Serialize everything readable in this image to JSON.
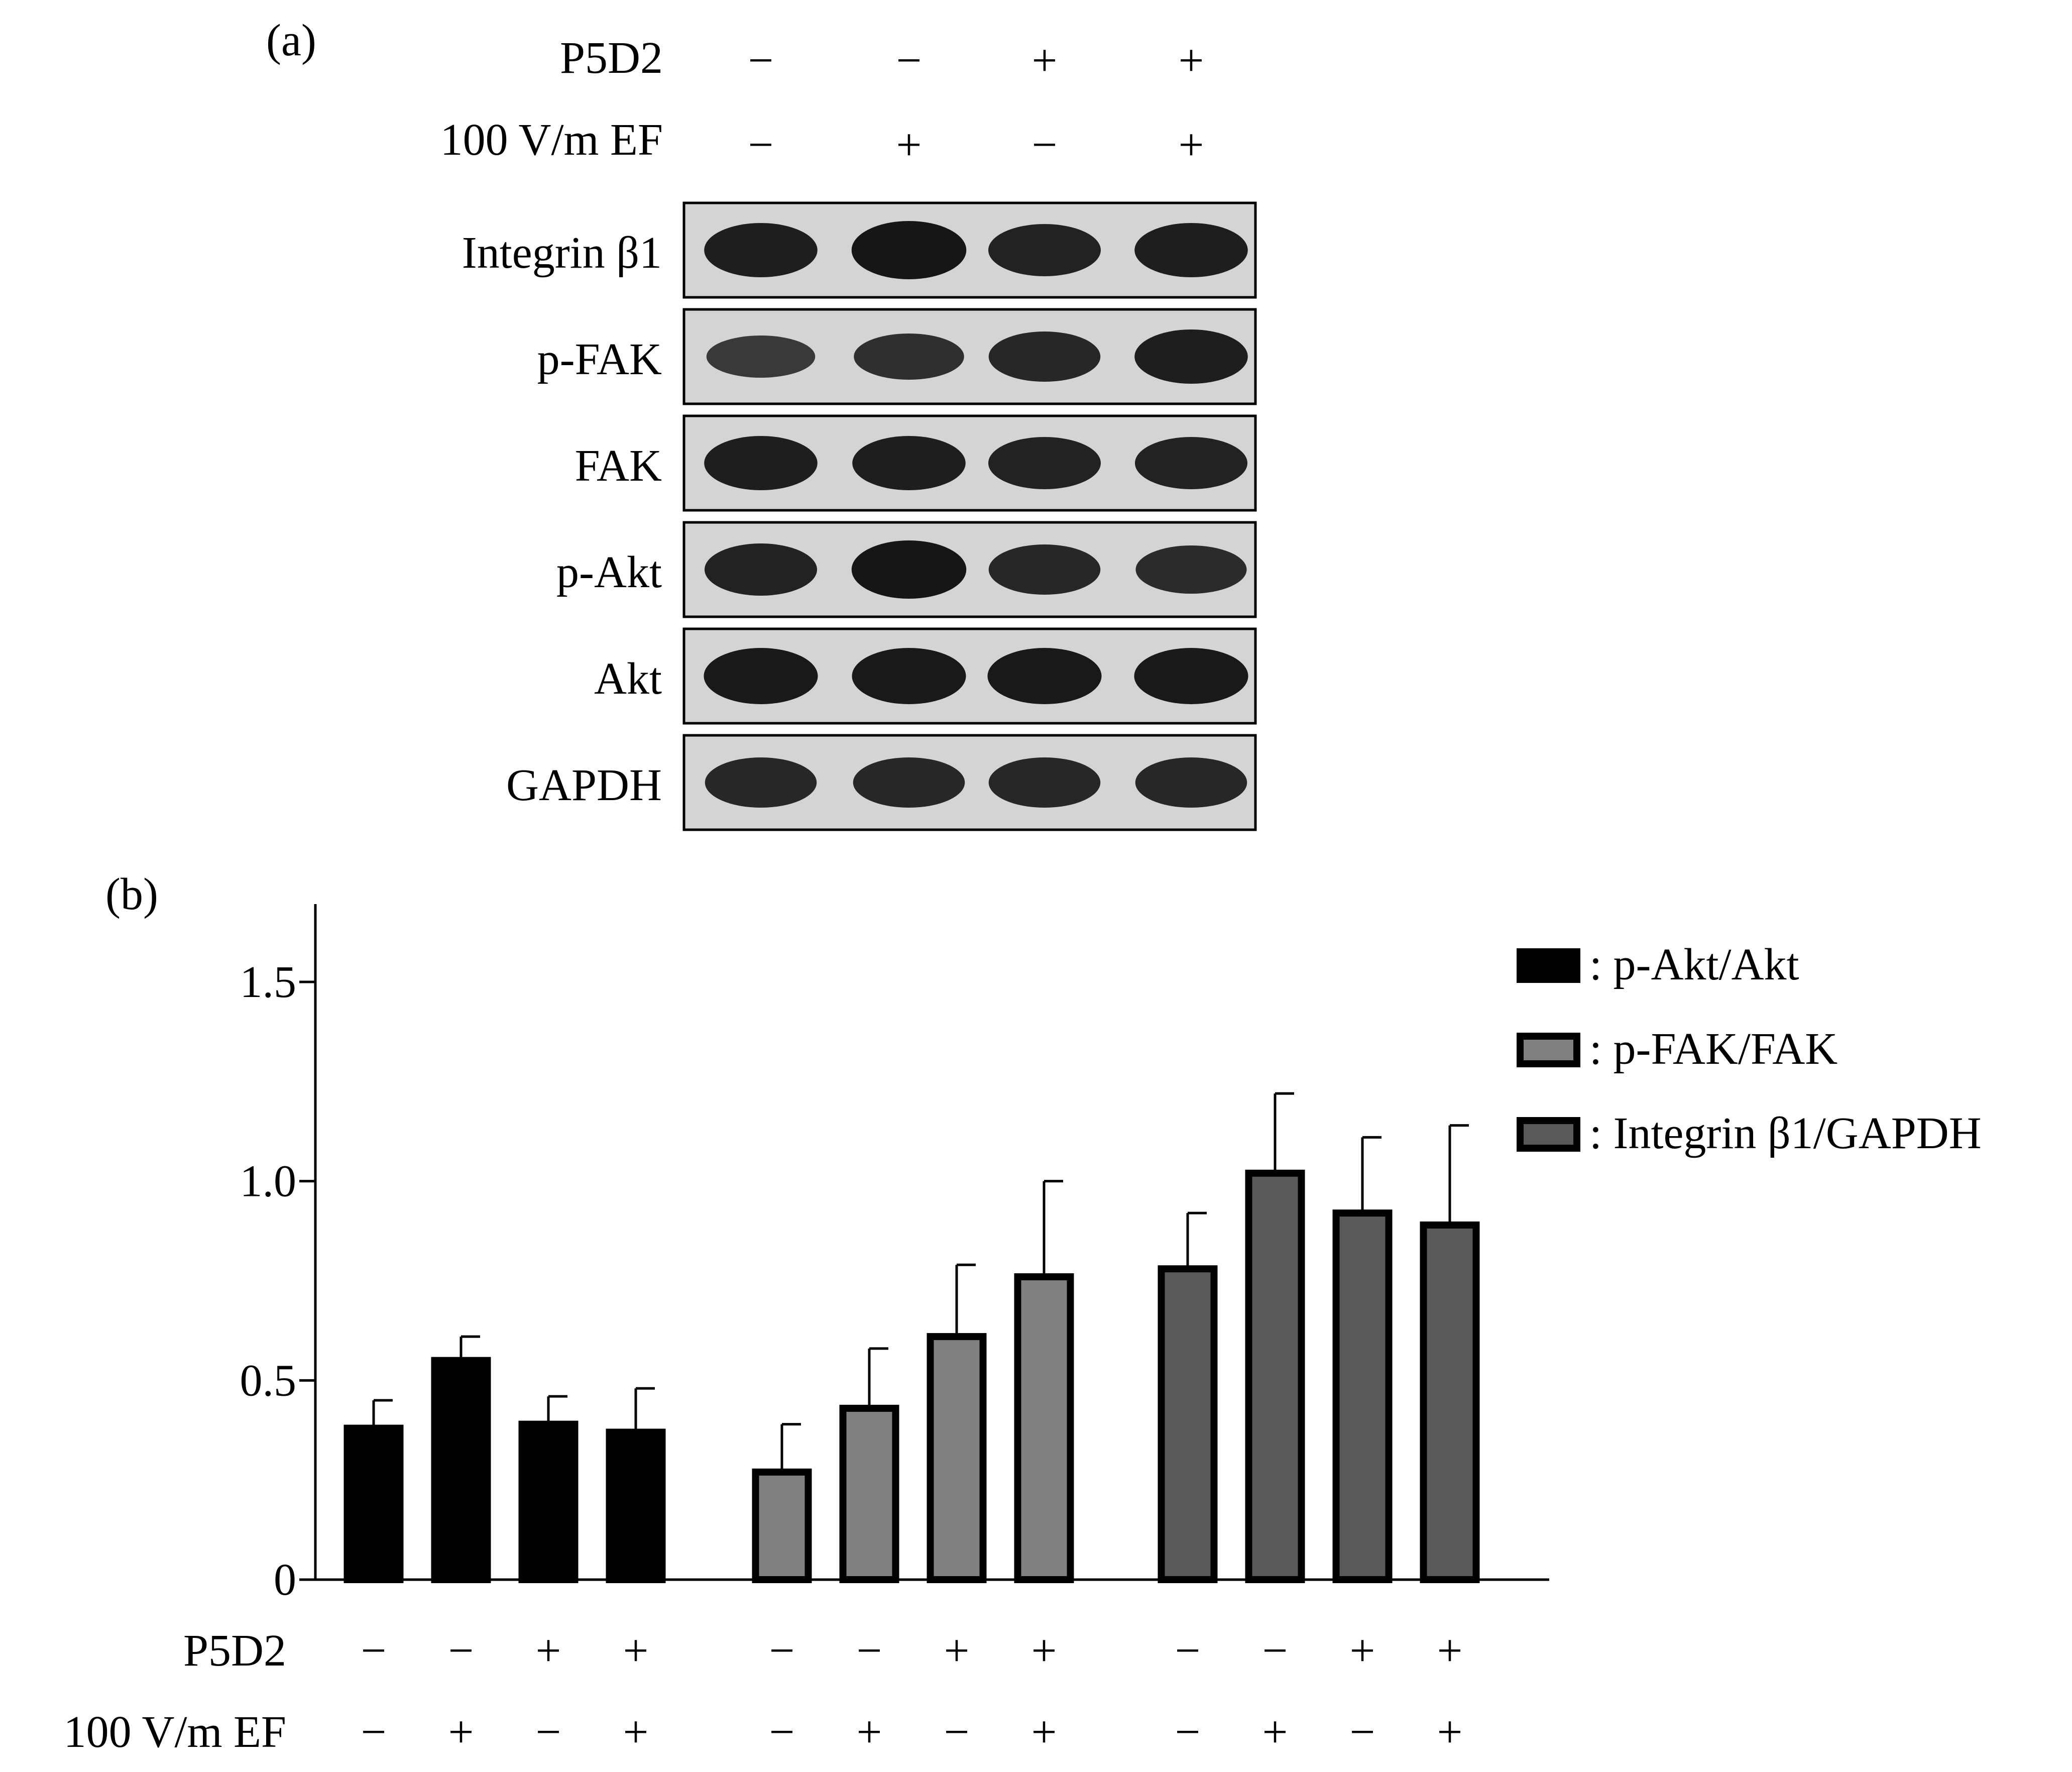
{
  "panel_a": {
    "label": "(a)",
    "conditions": [
      {
        "label": "P5D2",
        "signs": [
          "−",
          "−",
          "+",
          "+"
        ]
      },
      {
        "label": "100 V/m EF",
        "signs": [
          "−",
          "+",
          "−",
          "+"
        ]
      }
    ],
    "blots": [
      {
        "label": "Integrin β1",
        "bands": [
          0.85,
          0.95,
          0.8,
          0.85
        ]
      },
      {
        "label": "p-FAK",
        "bands": [
          0.55,
          0.65,
          0.75,
          0.85
        ]
      },
      {
        "label": "FAK",
        "bands": [
          0.85,
          0.85,
          0.8,
          0.8
        ]
      },
      {
        "label": "p-Akt",
        "bands": [
          0.8,
          0.95,
          0.75,
          0.7
        ]
      },
      {
        "label": "Akt",
        "bands": [
          0.9,
          0.9,
          0.9,
          0.9
        ]
      },
      {
        "label": "GAPDH",
        "bands": [
          0.75,
          0.75,
          0.75,
          0.75
        ]
      }
    ],
    "colors": {
      "blot_background": "#d4d4d4",
      "band": "#111111"
    }
  },
  "panel_b": {
    "label": "(b)",
    "conditions": [
      {
        "label": "P5D2",
        "signs": [
          "−",
          "−",
          "+",
          "+",
          "−",
          "−",
          "+",
          "+",
          "−",
          "−",
          "+",
          "+"
        ]
      },
      {
        "label": "100 V/m EF",
        "signs": [
          "−",
          "+",
          "−",
          "+",
          "−",
          "+",
          "−",
          "+",
          "−",
          "+",
          "−",
          "+"
        ]
      }
    ]
  },
  "chart_data": {
    "type": "bar",
    "title": "",
    "xlabel": "",
    "ylabel": "",
    "ylim": [
      0,
      1.7
    ],
    "yticks": [
      {
        "value": 0,
        "label": "0"
      },
      {
        "value": 0.5,
        "label": "0.5"
      },
      {
        "value": 1.0,
        "label": "1.0"
      },
      {
        "value": 1.5,
        "label": "1.5"
      }
    ],
    "categories": [
      "P5D2 − / EF −",
      "P5D2 − / EF +",
      "P5D2 + / EF −",
      "P5D2 + / EF +"
    ],
    "legend_position": "top-right",
    "grid": false,
    "series": [
      {
        "name": ": p-Akt/Akt",
        "color": "#000000",
        "values": [
          0.38,
          0.55,
          0.39,
          0.37
        ],
        "errors": [
          0.07,
          0.06,
          0.07,
          0.11
        ]
      },
      {
        "name": ": p-FAK/FAK",
        "color": "#808080",
        "values": [
          0.27,
          0.43,
          0.61,
          0.76
        ],
        "errors": [
          0.12,
          0.15,
          0.18,
          0.24
        ]
      },
      {
        "name": ": Integrin β1/GAPDH",
        "color": "#595959",
        "values": [
          0.78,
          1.02,
          0.92,
          0.89
        ],
        "errors": [
          0.14,
          0.2,
          0.19,
          0.25
        ]
      }
    ]
  }
}
